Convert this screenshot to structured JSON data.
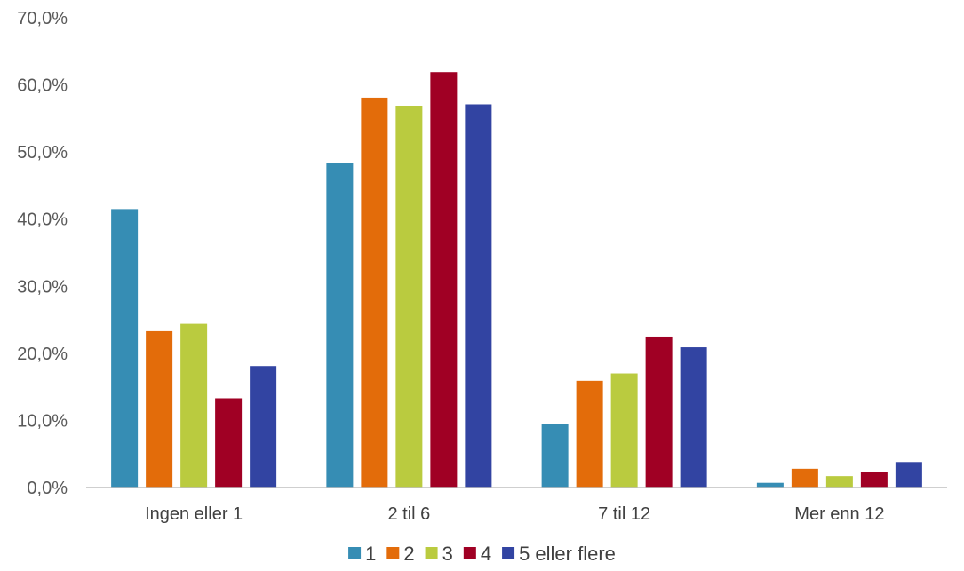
{
  "chart_data": {
    "type": "bar",
    "categories": [
      "Ingen eller 1",
      "2 til 6",
      "7 til 12",
      "Mer enn 12"
    ],
    "series": [
      {
        "name": "1",
        "color": "#368DB4",
        "values": [
          41.5,
          48.4,
          9.4,
          0.7
        ]
      },
      {
        "name": "2",
        "color": "#E36C0A",
        "values": [
          23.3,
          58.1,
          15.9,
          2.8
        ]
      },
      {
        "name": "3",
        "color": "#BACB3F",
        "values": [
          24.4,
          56.9,
          17.0,
          1.7
        ]
      },
      {
        "name": "4",
        "color": "#A00024",
        "values": [
          13.3,
          61.9,
          22.5,
          2.3
        ]
      },
      {
        "name": "5 eller flere",
        "color": "#3244A2",
        "values": [
          18.1,
          57.1,
          20.9,
          3.8
        ]
      }
    ],
    "yticks": [
      "0,0%",
      "10,0%",
      "20,0%",
      "30,0%",
      "40,0%",
      "50,0%",
      "60,0%",
      "70,0%"
    ],
    "ylim": [
      0,
      70
    ],
    "ystep": 10,
    "grid": false,
    "legend_position": "bottom",
    "title": "",
    "xlabel": "",
    "ylabel": ""
  }
}
